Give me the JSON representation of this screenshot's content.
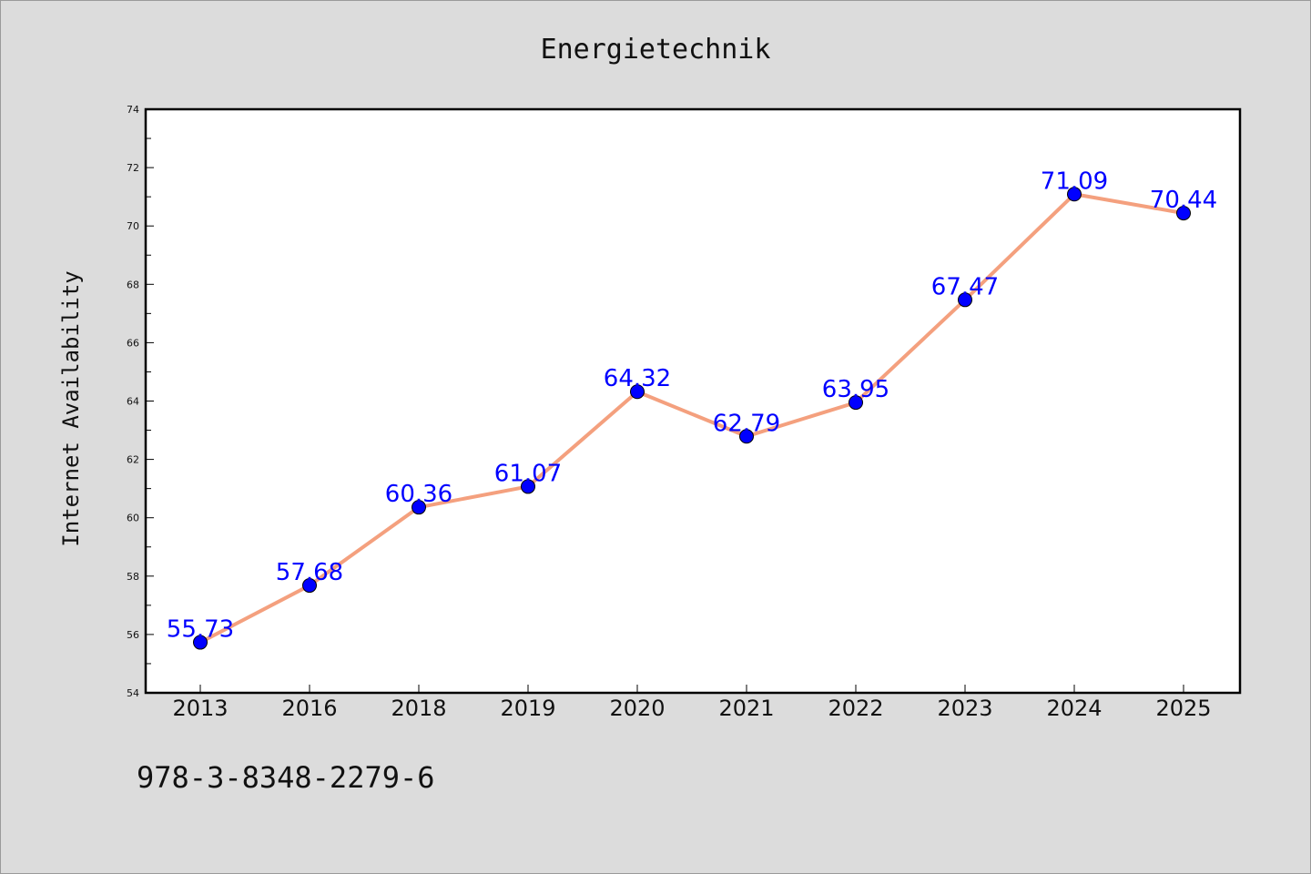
{
  "chart_data": {
    "type": "line",
    "title": "Energietechnik",
    "xlabel": "",
    "ylabel": "Internet Availability",
    "categories": [
      "2013",
      "2016",
      "2018",
      "2019",
      "2020",
      "2021",
      "2022",
      "2023",
      "2024",
      "2025"
    ],
    "series": [
      {
        "values": [
          55.73,
          57.68,
          60.36,
          61.07,
          64.32,
          62.79,
          63.95,
          67.47,
          71.09,
          70.44
        ],
        "line_color": "#f4a07e",
        "marker_color": "#0000ff"
      }
    ],
    "data_labels": [
      "55.73",
      "57.68",
      "60.36",
      "61.07",
      "64.32",
      "62.79",
      "63.95",
      "67.47",
      "71.09",
      "70.44"
    ],
    "ylim": [
      54,
      74
    ],
    "yticks": [
      "54",
      "56",
      "58",
      "60",
      "62",
      "64",
      "66",
      "68",
      "70",
      "72",
      "74"
    ],
    "grid": false,
    "legend": "none"
  },
  "footer": {
    "isbn": "978-3-8348-2279-6"
  }
}
